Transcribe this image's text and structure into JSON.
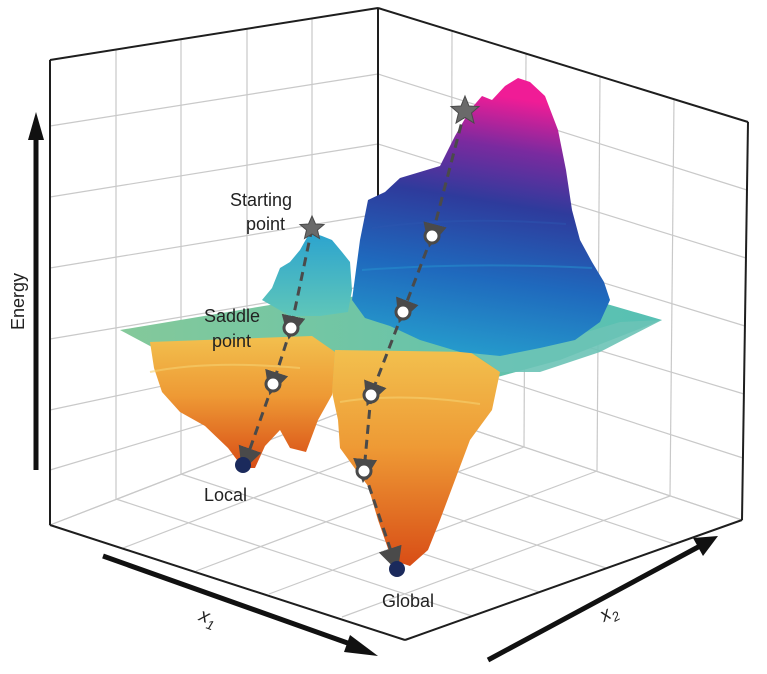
{
  "labels": {
    "energy": "Energy",
    "x1": "x",
    "x1_sub": "1",
    "x2": "x",
    "x2_sub": "2",
    "starting_point_line1": "Starting",
    "starting_point_line2": "point",
    "saddle_point_line1": "Saddle",
    "saddle_point_line2": "point",
    "local": "Local",
    "global": "Global"
  },
  "colors": {
    "surface_low": "#d96a1e",
    "surface_mid_low": "#f1b84d",
    "surface_plateau": "#7cc7a3",
    "surface_mid_high": "#2aa4d4",
    "surface_high": "#2f3b9a",
    "surface_peak": "#e41b9a",
    "path": "#4a4a4a",
    "minimum_marker": "#1b2a5c",
    "axis_arrow": "#111111"
  }
}
